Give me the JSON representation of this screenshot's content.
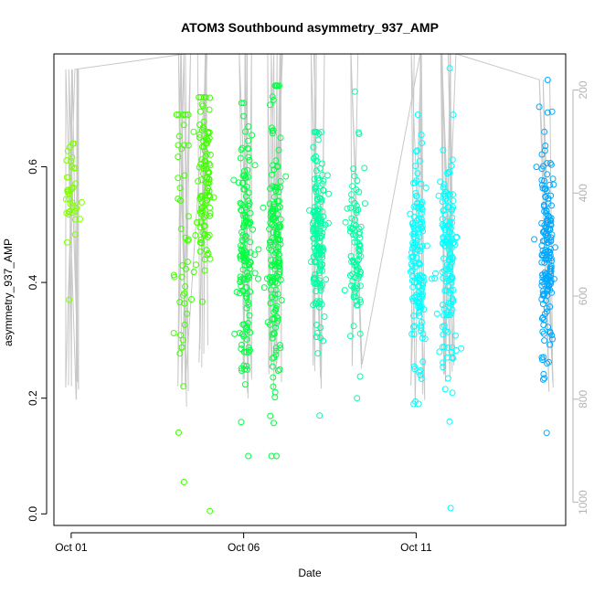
{
  "chart_data": {
    "type": "scatter",
    "title": "ATOM3 Southbound asymmetry_937_AMP",
    "xlabel": "Date",
    "ylabel": "asymmetry_937_AMP",
    "x_ticks": [
      {
        "date": "2014-10-01",
        "label": "Oct 01"
      },
      {
        "date": "2014-10-06",
        "label": "Oct 06"
      },
      {
        "date": "2014-10-11",
        "label": "Oct 11"
      }
    ],
    "xlim": [
      "2014-09-30T12:00",
      "2014-10-15T08:00"
    ],
    "ylim": [
      -0.02,
      0.795
    ],
    "y_ticks": [
      0.0,
      0.2,
      0.4,
      0.6
    ],
    "y_tick_labels": [
      "0.0",
      "0.2",
      "0.4",
      "0.6"
    ],
    "right_axis": {
      "label": "",
      "ticks": [
        200,
        400,
        600,
        800,
        1000
      ],
      "tick_labels": [
        "200",
        "400",
        "600",
        "800",
        "1000"
      ],
      "lim": [
        1045,
        130
      ],
      "reversed": true,
      "color": "#b3b3b3"
    },
    "grid": false,
    "legend": "none",
    "point_colors": [
      "#80ff00",
      "#40ff00",
      "#00ff40",
      "#00ffa0",
      "#00ffff",
      "#00c0ff",
      "#0080ff"
    ],
    "line_color": "#c8c8c8",
    "profiles": [
      {
        "time": "2014-10-01T00:00",
        "color": "#80ff00",
        "n": 40,
        "mean": 0.56,
        "sd": 0.045,
        "min": 0.37,
        "max": 0.64,
        "pmin": 160,
        "pmax": 820
      },
      {
        "time": "2014-10-04T06:00",
        "color": "#40ff00",
        "n": 48,
        "mean": 0.47,
        "sd": 0.13,
        "min": 0.055,
        "max": 0.69,
        "pmin": 130,
        "pmax": 820
      },
      {
        "time": "2014-10-04T21:00",
        "color": "#40ff00",
        "n": 110,
        "mean": 0.56,
        "sd": 0.08,
        "min": 0.005,
        "max": 0.72,
        "pmin": 130,
        "pmax": 750
      },
      {
        "time": "2014-10-06T01:00",
        "color": "#00ff40",
        "n": 150,
        "mean": 0.46,
        "sd": 0.13,
        "min": 0.1,
        "max": 0.71,
        "pmin": 130,
        "pmax": 800
      },
      {
        "time": "2014-10-06T22:00",
        "color": "#00ff40",
        "n": 170,
        "mean": 0.45,
        "sd": 0.13,
        "min": 0.1,
        "max": 0.74,
        "pmin": 130,
        "pmax": 780
      },
      {
        "time": "2014-10-08T04:00",
        "color": "#00ffa0",
        "n": 160,
        "mean": 0.47,
        "sd": 0.09,
        "min": 0.17,
        "max": 0.66,
        "pmin": 130,
        "pmax": 790
      },
      {
        "time": "2014-10-09T06:00",
        "color": "#00ffa0",
        "n": 90,
        "mean": 0.45,
        "sd": 0.08,
        "min": 0.2,
        "max": 0.73,
        "pmin": 130,
        "pmax": 760
      },
      {
        "time": "2014-10-11T01:00",
        "color": "#00ffff",
        "n": 150,
        "mean": 0.42,
        "sd": 0.09,
        "min": 0.19,
        "max": 0.69,
        "pmin": 130,
        "pmax": 830
      },
      {
        "time": "2014-10-11T22:00",
        "color": "#00ffff",
        "n": 150,
        "mean": 0.44,
        "sd": 0.1,
        "min": 0.01,
        "max": 0.77,
        "pmin": 130,
        "pmax": 780
      },
      {
        "time": "2014-10-14T19:00",
        "color": "#00a8ff",
        "n": 170,
        "mean": 0.45,
        "sd": 0.1,
        "min": 0.14,
        "max": 0.75,
        "pmin": 180,
        "pmax": 820
      }
    ]
  }
}
